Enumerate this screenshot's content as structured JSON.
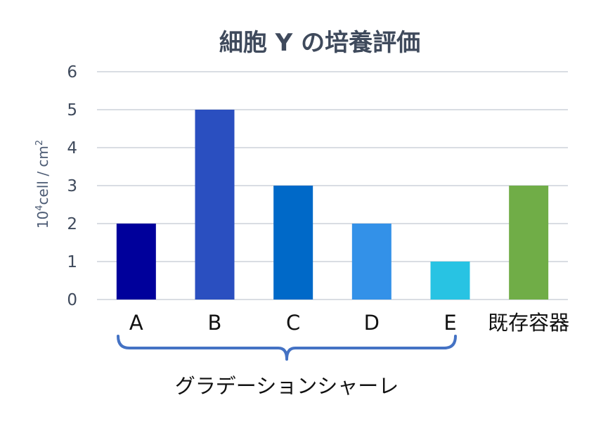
{
  "chart_data": {
    "type": "bar",
    "title": "細胞 Y の培養評価",
    "ylabel_main": "10",
    "ylabel_sup": "4",
    "ylabel_rest": "cell / cm",
    "ylabel_sup2": "2",
    "categories": [
      "A",
      "B",
      "C",
      "D",
      "E",
      "既存容器"
    ],
    "values": [
      2,
      5,
      3,
      2,
      1,
      3
    ],
    "bar_colors": [
      "#00009b",
      "#2a4fc0",
      "#0069c8",
      "#3391e8",
      "#28c3e3",
      "#70ad47"
    ],
    "ylim": [
      0,
      6
    ],
    "yticks": [
      0,
      1,
      2,
      3,
      4,
      5,
      6
    ],
    "grid": true,
    "group_label": "グラデーションシャーレ",
    "brace_color": "#4472c4"
  }
}
